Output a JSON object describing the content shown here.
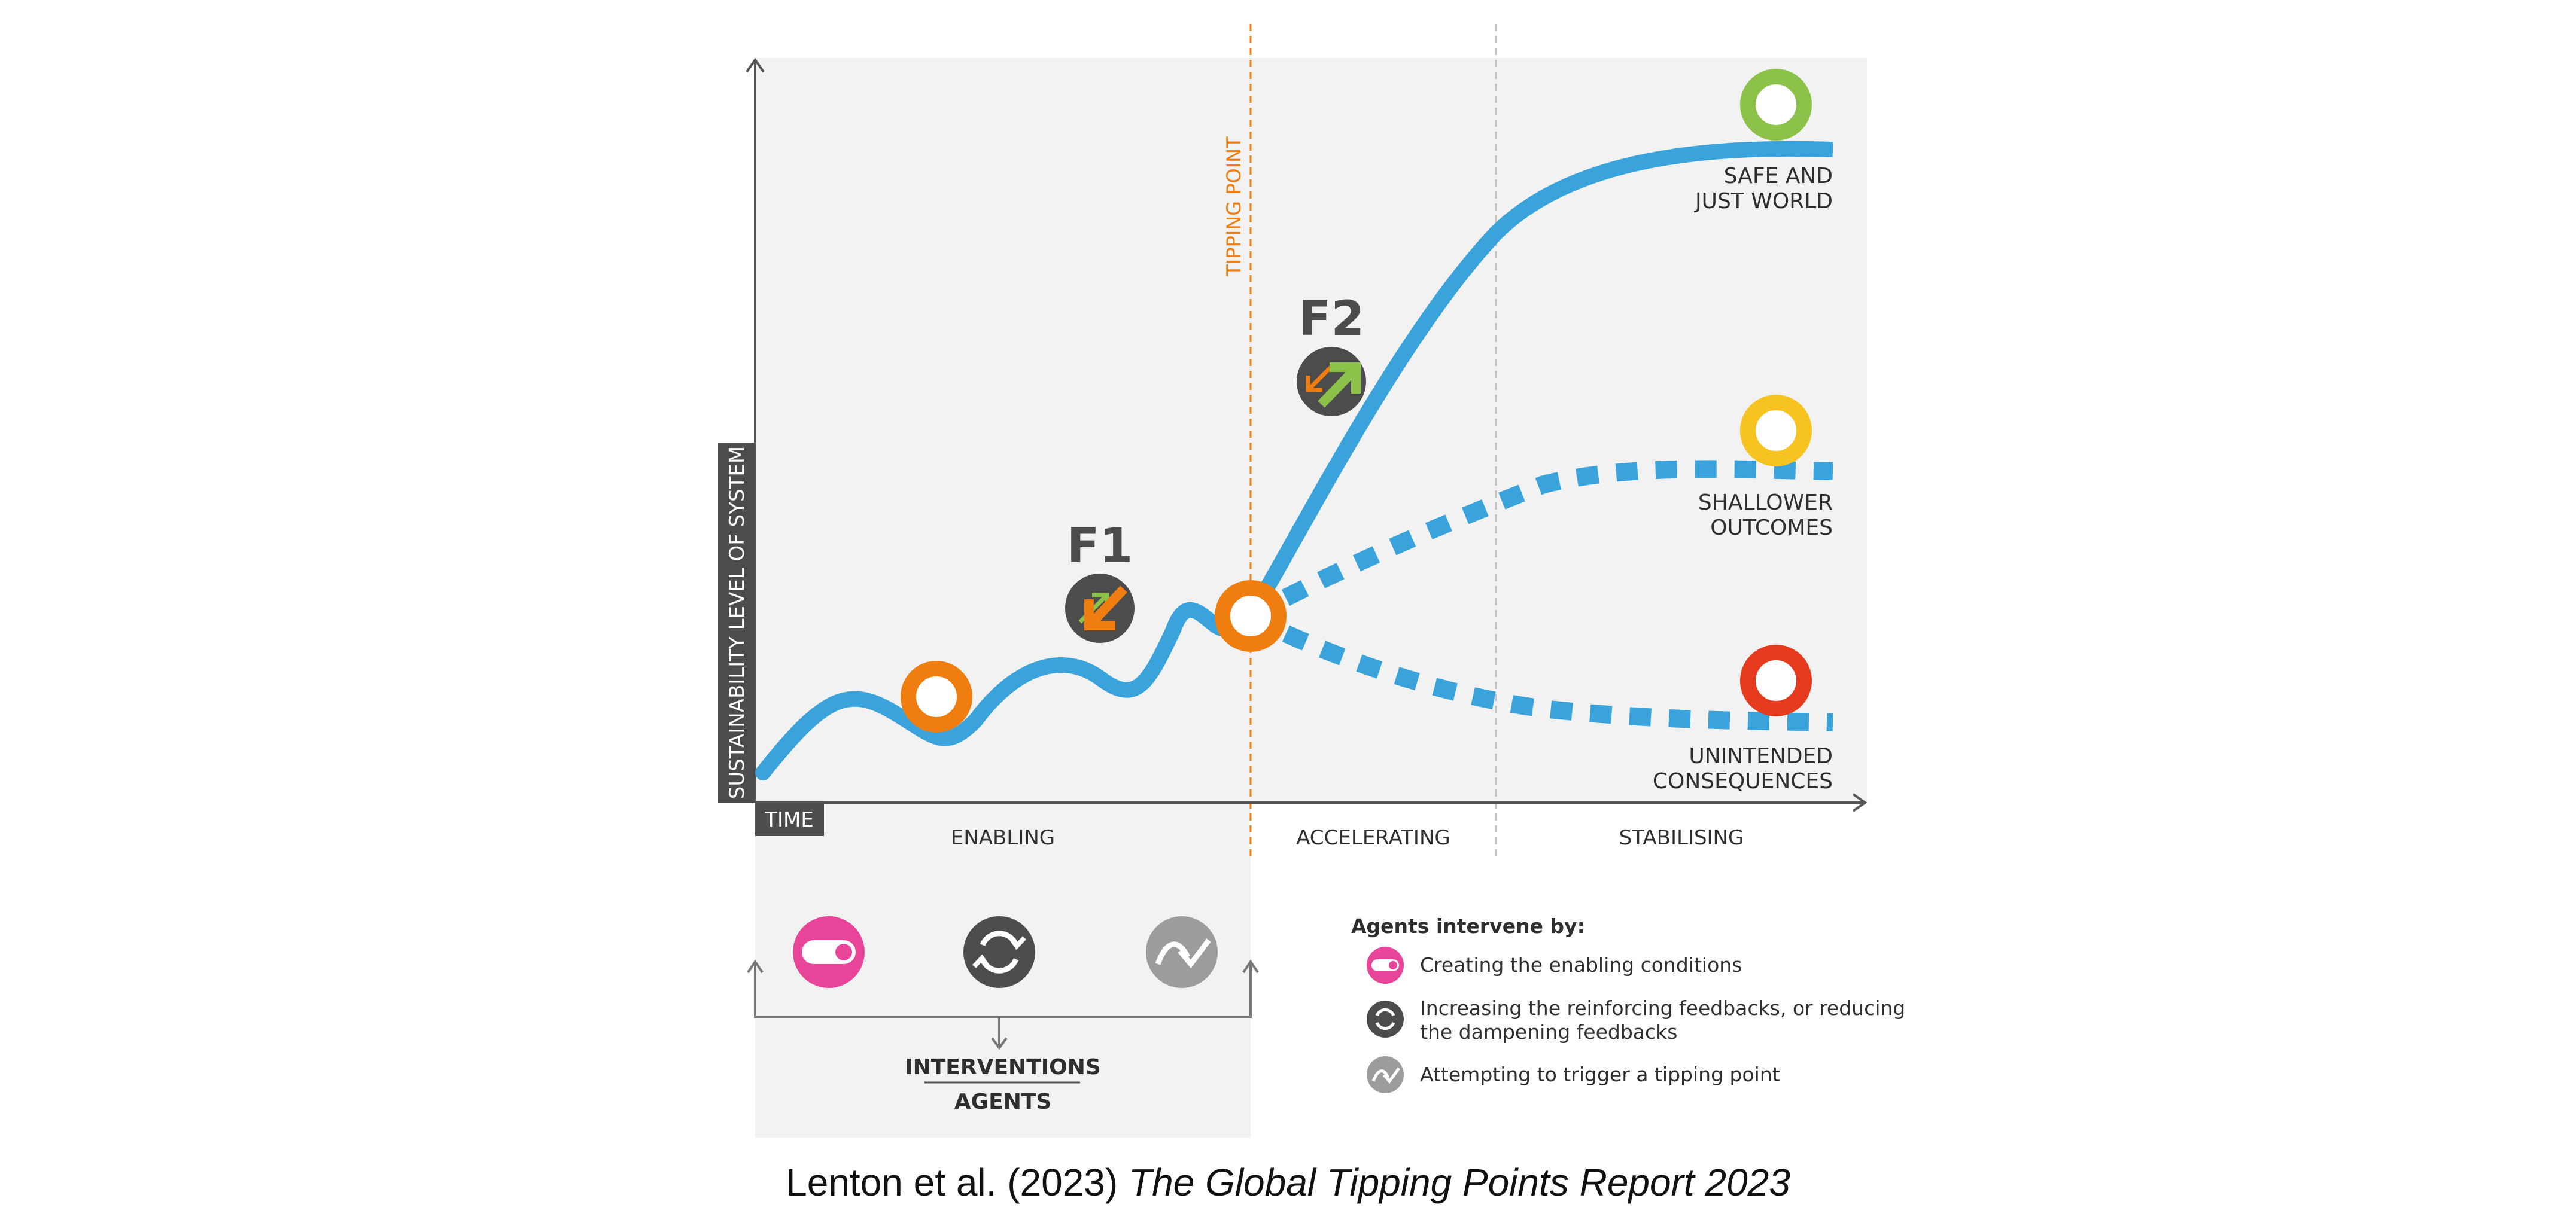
{
  "axes": {
    "y_label": "SUSTAINABILITY LEVEL OF SYSTEM",
    "x_label": "TIME",
    "tipping_point": "TIPPING POINT"
  },
  "phases": [
    "ENABLING",
    "ACCELERATING",
    "STABILISING"
  ],
  "markers": {
    "f1": "F1",
    "f2": "F2"
  },
  "outcomes": {
    "safe": [
      "SAFE AND",
      "JUST WORLD"
    ],
    "shallow": [
      "SHALLOWER",
      "OUTCOMES"
    ],
    "unintended": [
      "UNINTENDED",
      "CONSEQUENCES"
    ]
  },
  "interventions": {
    "top": "INTERVENTIONS",
    "bottom": "AGENTS"
  },
  "legend": {
    "title": "Agents intervene by:",
    "items": [
      {
        "icon": "toggle-icon",
        "line1": "Creating the enabling conditions",
        "line2": ""
      },
      {
        "icon": "cycle-icon",
        "line1": "Increasing the reinforcing feedbacks, or reducing",
        "line2": "the dampening feedbacks"
      },
      {
        "icon": "trigger-icon",
        "line1": "Attempting to trigger a tipping point",
        "line2": ""
      }
    ]
  },
  "caption": {
    "authors": "Lenton et al. (2023)",
    "title": "The Global Tipping Points Report 2023"
  },
  "colors": {
    "curve": "#3aa3dc",
    "orange": "#ef7d0f",
    "green": "#8cc24a",
    "yellow": "#f7c320",
    "red": "#e63a1e",
    "pink": "#e8449a",
    "dark": "#4c4c4c",
    "grey": "#9a9c9e",
    "panel": "#f2f2f2"
  }
}
